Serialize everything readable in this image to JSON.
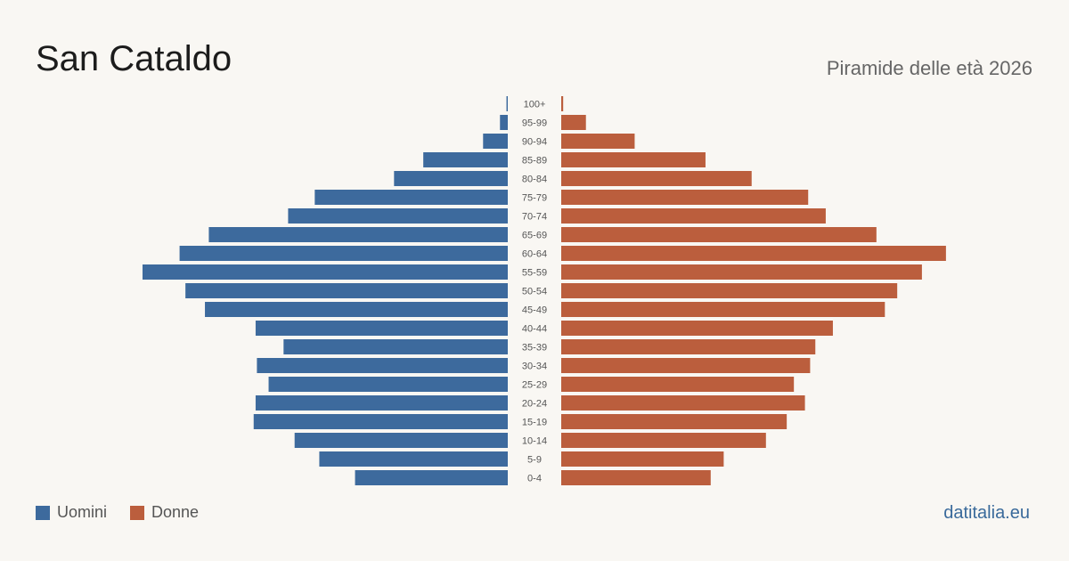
{
  "header": {
    "title": "San Cataldo",
    "subtitle": "Piramide delle età 2026"
  },
  "legend": {
    "male_label": "Uomini",
    "female_label": "Donne"
  },
  "footer": {
    "site": "datitalia.eu"
  },
  "colors": {
    "male": "#3d6a9d",
    "female": "#bb5e3d",
    "background": "#f9f7f3"
  },
  "chart_data": {
    "type": "bar",
    "orientation": "horizontal-pyramid",
    "title": "San Cataldo",
    "subtitle": "Piramide delle età 2026",
    "categories": [
      "100+",
      "95-99",
      "90-94",
      "85-89",
      "80-84",
      "75-79",
      "70-74",
      "65-69",
      "60-64",
      "55-59",
      "50-54",
      "45-49",
      "40-44",
      "35-39",
      "30-34",
      "25-29",
      "20-24",
      "15-19",
      "10-14",
      "5-9",
      "0-4"
    ],
    "series": [
      {
        "name": "Uomini",
        "side": "left",
        "values": [
          2,
          12,
          38,
          130,
          175,
          297,
          338,
          460,
          505,
          562,
          496,
          466,
          388,
          345,
          386,
          368,
          388,
          391,
          328,
          290,
          235
        ]
      },
      {
        "name": "Donne",
        "side": "right",
        "values": [
          3,
          38,
          113,
          222,
          293,
          380,
          407,
          485,
          592,
          555,
          517,
          498,
          418,
          391,
          383,
          358,
          375,
          347,
          315,
          250,
          230
        ]
      }
    ],
    "xlim": [
      0,
      590
    ],
    "grid": false,
    "legend_position": "bottom-left"
  }
}
